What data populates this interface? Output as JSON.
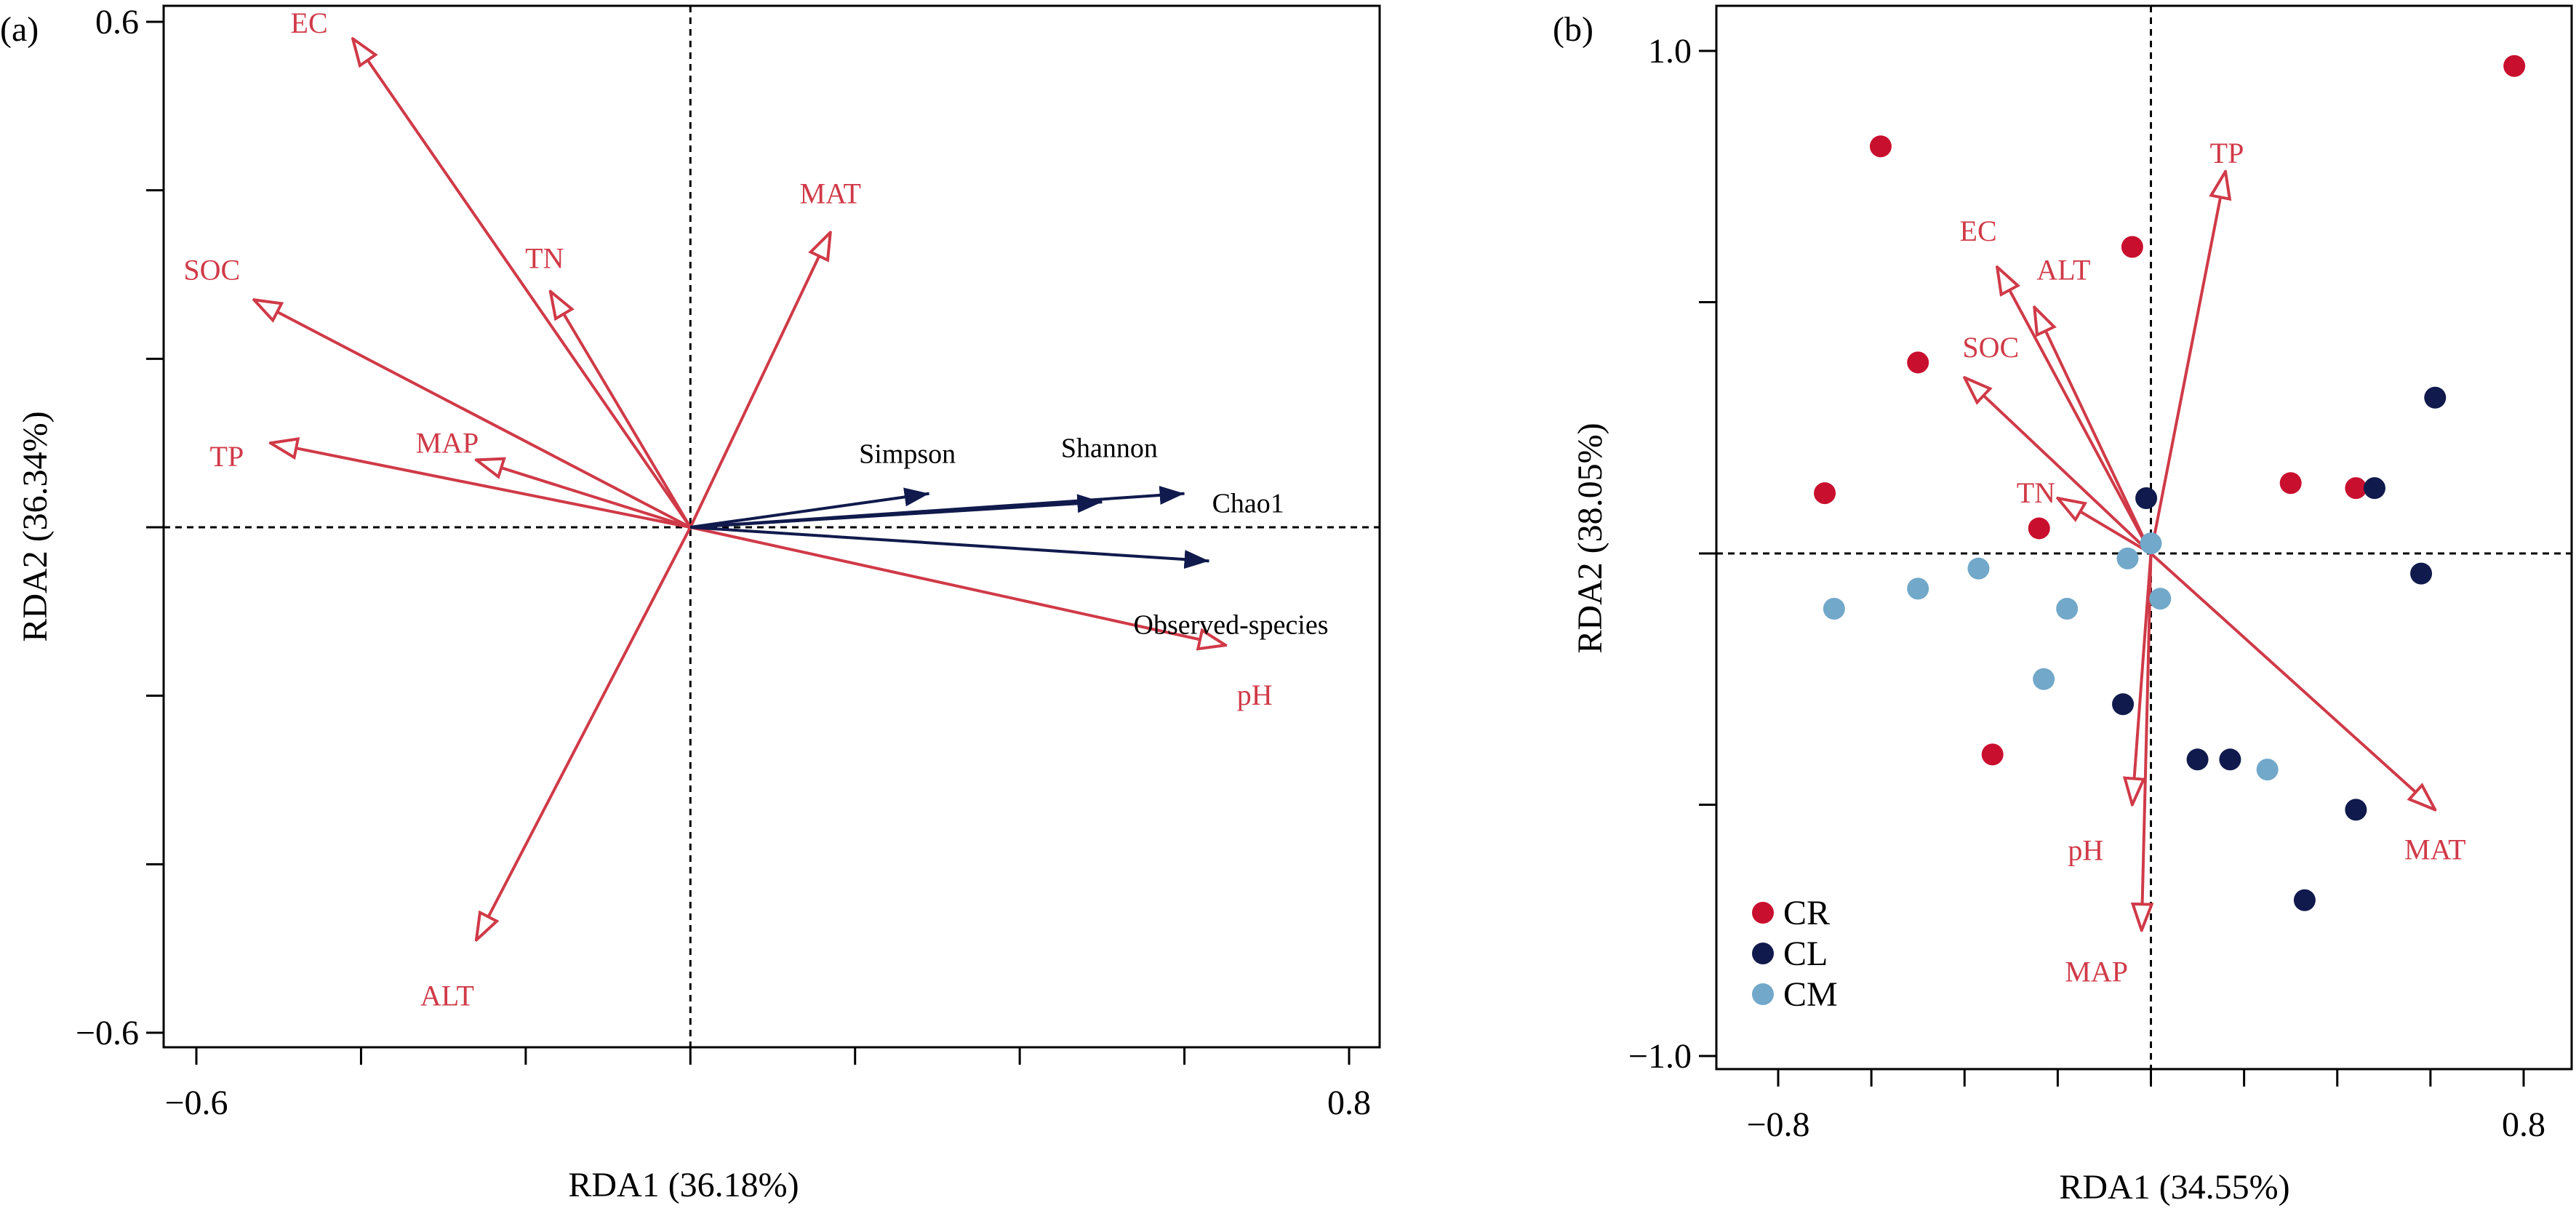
{
  "colors": {
    "env": "#d03a48",
    "diversity": "#101a4c",
    "frame": "#000000"
  },
  "chart_data": [
    {
      "type": "scatter",
      "panel_label": "(a)",
      "xlabel": "RDA1 (36.18%)",
      "ylabel": "RDA2 (36.34%)",
      "xlim": [
        -0.63,
        0.83
      ],
      "ylim": [
        -0.64,
        0.62
      ],
      "x_ticks": [
        -0.6,
        0.8
      ],
      "y_ticks": [
        0.6,
        -0.6
      ],
      "x_minor_ticks": [
        -0.4,
        -0.2,
        0.0,
        0.2,
        0.4,
        0.6
      ],
      "y_minor_ticks": [
        0.4,
        0.2,
        0.0,
        -0.2,
        -0.4
      ],
      "grid": false,
      "env_vectors": [
        {
          "name": "EC",
          "x": -0.41,
          "y": 0.58
        },
        {
          "name": "TN",
          "x": -0.17,
          "y": 0.28
        },
        {
          "name": "SOC",
          "x": -0.53,
          "y": 0.27
        },
        {
          "name": "TP",
          "x": -0.51,
          "y": 0.1
        },
        {
          "name": "MAP",
          "x": -0.26,
          "y": 0.08
        },
        {
          "name": "MAT",
          "x": 0.17,
          "y": 0.35
        },
        {
          "name": "ALT",
          "x": -0.26,
          "y": -0.49
        },
        {
          "name": "pH",
          "x": 0.65,
          "y": -0.14
        }
      ],
      "diversity_vectors": [
        {
          "name": "Simpson",
          "x": 0.29,
          "y": 0.04
        },
        {
          "name": "Shannon",
          "x": 0.5,
          "y": 0.03
        },
        {
          "name": "Chao1",
          "x": 0.6,
          "y": 0.04
        },
        {
          "name": "Observed-species",
          "x": 0.63,
          "y": -0.04
        }
      ]
    },
    {
      "type": "scatter",
      "panel_label": "(b)",
      "xlabel": "RDA1 (34.55%)",
      "ylabel": "RDA2 (38.05%)",
      "xlim": [
        -0.86,
        0.86
      ],
      "ylim": [
        -1.02,
        1.08
      ],
      "x_ticks": [
        -0.8,
        0.8
      ],
      "y_ticks": [
        1.0,
        -1.0
      ],
      "x_minor_ticks": [
        -0.6,
        -0.4,
        -0.2,
        0.0,
        0.2,
        0.4,
        0.6
      ],
      "y_minor_ticks": [
        0.5,
        0.0,
        -0.5
      ],
      "grid": false,
      "legend_position": "bottom-left",
      "legend": [
        {
          "name": "CR",
          "color": "#c8102e"
        },
        {
          "name": "CL",
          "color": "#101a4c"
        },
        {
          "name": "CM",
          "color": "#72a8c9"
        }
      ],
      "env_vectors": [
        {
          "name": "TP",
          "x": 0.16,
          "y": 0.76
        },
        {
          "name": "EC",
          "x": -0.33,
          "y": 0.57
        },
        {
          "name": "ALT",
          "x": -0.25,
          "y": 0.49
        },
        {
          "name": "SOC",
          "x": -0.4,
          "y": 0.35
        },
        {
          "name": "TN",
          "x": -0.2,
          "y": 0.11
        },
        {
          "name": "MAT",
          "x": 0.61,
          "y": -0.51
        },
        {
          "name": "pH",
          "x": -0.04,
          "y": -0.5
        },
        {
          "name": "MAP",
          "x": -0.02,
          "y": -0.75
        }
      ],
      "points": [
        {
          "group": "CR",
          "x": 0.78,
          "y": 0.97
        },
        {
          "group": "CR",
          "x": -0.58,
          "y": 0.81
        },
        {
          "group": "CR",
          "x": -0.04,
          "y": 0.61
        },
        {
          "group": "CR",
          "x": -0.5,
          "y": 0.38
        },
        {
          "group": "CR",
          "x": -0.7,
          "y": 0.12
        },
        {
          "group": "CR",
          "x": 0.3,
          "y": 0.14
        },
        {
          "group": "CR",
          "x": 0.44,
          "y": 0.13
        },
        {
          "group": "CR",
          "x": -0.24,
          "y": 0.05
        },
        {
          "group": "CR",
          "x": -0.34,
          "y": -0.4
        },
        {
          "group": "CL",
          "x": 0.61,
          "y": 0.31
        },
        {
          "group": "CL",
          "x": 0.48,
          "y": 0.13
        },
        {
          "group": "CL",
          "x": -0.01,
          "y": 0.11
        },
        {
          "group": "CL",
          "x": 0.58,
          "y": -0.04
        },
        {
          "group": "CL",
          "x": -0.06,
          "y": -0.3
        },
        {
          "group": "CL",
          "x": 0.1,
          "y": -0.41
        },
        {
          "group": "CL",
          "x": 0.17,
          "y": -0.41
        },
        {
          "group": "CL",
          "x": 0.44,
          "y": -0.51
        },
        {
          "group": "CL",
          "x": 0.33,
          "y": -0.69
        },
        {
          "group": "CM",
          "x": -0.68,
          "y": -0.11
        },
        {
          "group": "CM",
          "x": -0.5,
          "y": -0.07
        },
        {
          "group": "CM",
          "x": -0.37,
          "y": -0.03
        },
        {
          "group": "CM",
          "x": -0.18,
          "y": -0.11
        },
        {
          "group": "CM",
          "x": -0.05,
          "y": -0.01
        },
        {
          "group": "CM",
          "x": 0.0,
          "y": 0.02
        },
        {
          "group": "CM",
          "x": 0.02,
          "y": -0.09
        },
        {
          "group": "CM",
          "x": -0.23,
          "y": -0.25
        },
        {
          "group": "CM",
          "x": 0.25,
          "y": -0.43
        }
      ]
    }
  ]
}
